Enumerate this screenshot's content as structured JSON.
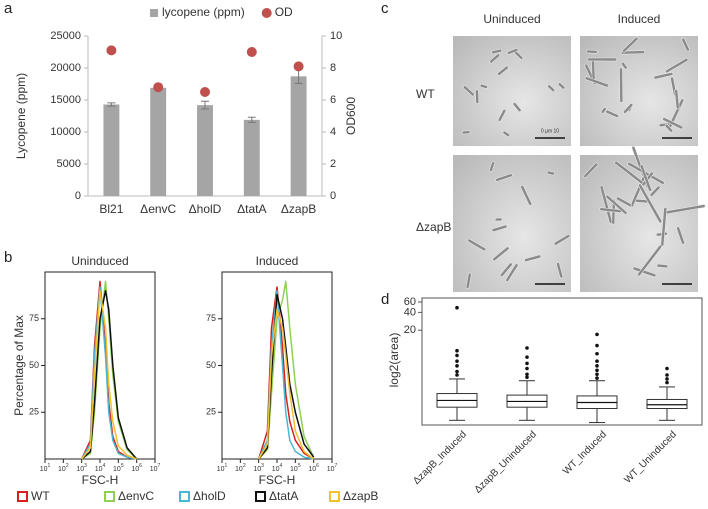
{
  "chart_data": [
    {
      "type": "bar",
      "categories": [
        "Bl21",
        "ΔenvC",
        "ΔholD",
        "ΔtatA",
        "ΔzapB"
      ],
      "series": [
        {
          "name": "lycopene (ppm)",
          "color": "#a5a5a5",
          "values": [
            14300,
            16900,
            14200,
            11900,
            18700
          ],
          "errors": [
            250,
            150,
            600,
            400,
            1100
          ]
        },
        {
          "name": "OD",
          "color": "#c0504d",
          "axis": "y2",
          "marker": "circle",
          "values": [
            9.1,
            6.8,
            6.5,
            9.0,
            8.1
          ]
        }
      ],
      "ylabel": "Lycopene (ppm)",
      "y2label": "OD600",
      "ylim": [
        0,
        25000
      ],
      "yticks": [
        0,
        5000,
        10000,
        15000,
        20000,
        25000
      ],
      "y2lim": [
        0,
        10
      ],
      "y2ticks": [
        0,
        2,
        4,
        6,
        8,
        10
      ],
      "legend": "top"
    },
    {
      "type": "line",
      "title": "Uninduced",
      "xlabel": "FSC-H",
      "ylabel": "Percentage of Max",
      "xscale": "log",
      "x": [
        1000,
        3000,
        5000,
        10000,
        20000,
        30000,
        50000,
        100000,
        300000,
        1000000
      ],
      "xlim": [
        10,
        10000000
      ],
      "xticks": [
        {
          "value": 10,
          "label": "10",
          "exponent": "1"
        },
        {
          "value": 100,
          "label": "10",
          "exponent": "2"
        },
        {
          "value": 1000,
          "label": "10",
          "exponent": "3"
        },
        {
          "value": 10000,
          "label": "10",
          "exponent": "4"
        },
        {
          "value": 100000,
          "label": "10",
          "exponent": "5"
        },
        {
          "value": 1000000,
          "label": "10",
          "exponent": "6"
        },
        {
          "value": 10000000,
          "label": "10",
          "exponent": "7"
        }
      ],
      "ylim": [
        0,
        100
      ],
      "yticks": [
        25,
        50,
        75
      ],
      "legend": "bottom",
      "series": [
        {
          "name": "WT",
          "color": "#d62020",
          "values": [
            0,
            10,
            60,
            95,
            60,
            30,
            12,
            4,
            1,
            0
          ]
        },
        {
          "name": "ΔenvC",
          "color": "#8fd14f",
          "values": [
            0,
            3,
            25,
            70,
            95,
            75,
            45,
            20,
            5,
            0
          ]
        },
        {
          "name": "ΔholD",
          "color": "#4bb5d6",
          "values": [
            0,
            8,
            55,
            92,
            55,
            25,
            10,
            3,
            1,
            0
          ]
        },
        {
          "name": "ΔtatA",
          "color": "#111111",
          "values": [
            0,
            4,
            30,
            75,
            90,
            80,
            50,
            22,
            6,
            0
          ]
        },
        {
          "name": "ΔzapB",
          "color": "#f2c12e",
          "values": [
            0,
            6,
            45,
            90,
            70,
            40,
            20,
            7,
            2,
            0
          ]
        }
      ]
    },
    {
      "type": "line",
      "title": "Induced",
      "xlabel": "FSC-H",
      "xscale": "log",
      "x": [
        1000,
        3000,
        5000,
        10000,
        20000,
        30000,
        50000,
        100000,
        300000,
        1000000
      ],
      "xlim": [
        10,
        10000000
      ],
      "xticks": [
        {
          "value": 10,
          "label": "10",
          "exponent": "1"
        },
        {
          "value": 100,
          "label": "10",
          "exponent": "2"
        },
        {
          "value": 1000,
          "label": "10",
          "exponent": "3"
        },
        {
          "value": 10000,
          "label": "10",
          "exponent": "4"
        },
        {
          "value": 100000,
          "label": "10",
          "exponent": "5"
        },
        {
          "value": 1000000,
          "label": "10",
          "exponent": "6"
        },
        {
          "value": 10000000,
          "label": "10",
          "exponent": "7"
        }
      ],
      "ylim": [
        0,
        100
      ],
      "yticks": [
        25,
        50,
        75
      ],
      "series": [
        {
          "color": "#d62020",
          "values": [
            0,
            15,
            70,
            92,
            60,
            35,
            20,
            10,
            3,
            0
          ]
        },
        {
          "color": "#8fd14f",
          "values": [
            0,
            5,
            35,
            75,
            85,
            95,
            70,
            40,
            12,
            1
          ]
        },
        {
          "color": "#4bb5d6",
          "values": [
            0,
            10,
            60,
            90,
            50,
            25,
            10,
            4,
            1,
            0
          ]
        },
        {
          "color": "#111111",
          "values": [
            0,
            6,
            45,
            88,
            75,
            60,
            40,
            25,
            8,
            1
          ]
        },
        {
          "color": "#f2c12e",
          "values": [
            0,
            8,
            55,
            80,
            70,
            55,
            35,
            15,
            4,
            0
          ]
        }
      ]
    },
    {
      "type": "box",
      "ylabel": "log2(area)",
      "yscale": "log",
      "ylim": [
        0.5,
        70
      ],
      "yticks": [
        20,
        40,
        60
      ],
      "categories": [
        "ΔzapB_Induced",
        "ΔzapB_Uninduced",
        "WT_Induced",
        "WT_Uninduced"
      ],
      "boxes": [
        {
          "whislo": 0.6,
          "q1": 1.0,
          "med": 1.3,
          "q3": 1.7,
          "whishi": 3.0,
          "fliers": [
            48,
            9,
            7.5,
            6,
            5,
            4,
            3.5
          ]
        },
        {
          "whislo": 0.6,
          "q1": 1.0,
          "med": 1.25,
          "q3": 1.6,
          "whishi": 2.8,
          "fliers": [
            10,
            7,
            5.5,
            4.5,
            3.6,
            3.2
          ]
        },
        {
          "whislo": 0.55,
          "q1": 0.95,
          "med": 1.2,
          "q3": 1.55,
          "whishi": 2.8,
          "fliers": [
            17,
            11,
            8,
            6,
            5,
            4.2,
            3.6,
            3.1
          ]
        },
        {
          "whislo": 0.6,
          "q1": 0.95,
          "med": 1.1,
          "q3": 1.35,
          "whishi": 2.2,
          "fliers": [
            4.5,
            3.5,
            3.0,
            2.6
          ]
        }
      ]
    }
  ],
  "figure": {
    "panel_labels": [
      "a",
      "b",
      "c",
      "d"
    ],
    "micrographs": {
      "columns": [
        "Uninduced",
        "Induced"
      ],
      "rows": [
        "WT",
        "ΔzapB"
      ],
      "scale_label": "0 μm 10"
    }
  }
}
